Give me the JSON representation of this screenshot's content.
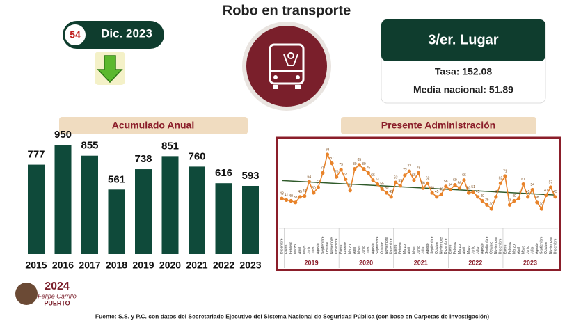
{
  "header": {
    "title": "Robo en transporte",
    "badge_number": "54",
    "period": "Dic. 2023"
  },
  "rank_card": {
    "rank": "3/er. Lugar",
    "rate": "Tasa: 152.08",
    "national_mean": "Media nacional: 51.89"
  },
  "logo": {
    "year": "2024",
    "line1": "Felipe Carrillo",
    "line2": "PUERTO"
  },
  "footer": "Fuente: S.S. y P.C. con datos del Secretariado Ejecutivo del Sistema Nacional de Seguridad Pública (con base en Carpetas de Investigación)",
  "chart_data": [
    {
      "type": "bar",
      "title": "Acumulado Anual",
      "color": "#0f4a3a",
      "categories": [
        "2015",
        "2016",
        "2017",
        "2018",
        "2019",
        "2020",
        "2021",
        "2022",
        "2023"
      ],
      "values": [
        777,
        950,
        855,
        561,
        738,
        851,
        760,
        616,
        593
      ]
    },
    {
      "type": "line",
      "title": "Presente Administración",
      "color": "#e8832a",
      "trend_color": "#2f5a2a",
      "categories": [
        "Diciembre",
        "Enero",
        "Febrero",
        "Marzo",
        "Abril",
        "Mayo",
        "Junio",
        "Julio",
        "Agosto",
        "Septiembre",
        "Octubre",
        "Noviembre",
        "Diciembre",
        "Enero",
        "Febrero",
        "Marzo",
        "Abril",
        "Mayo",
        "Junio",
        "Julio",
        "Agosto",
        "Septiembre",
        "Octubre",
        "Noviembre",
        "Diciembre",
        "Enero",
        "Febrero",
        "Marzo",
        "Abril",
        "Mayo",
        "Junio",
        "Julio",
        "Agosto",
        "Septiembre",
        "Octubre",
        "Noviembre",
        "Diciembre",
        "Enero",
        "Febrero",
        "Marzo",
        "Abril",
        "Mayo",
        "Junio",
        "Julio",
        "Agosto",
        "Septiembre",
        "Octubre",
        "Noviembre",
        "Diciembre",
        "Enero",
        "Febrero",
        "Marzo",
        "Abril",
        "Mayo",
        "Junio",
        "Julio",
        "Agosto",
        "Septiembre",
        "Octubre",
        "Noviembre",
        "Diciembre"
      ],
      "year_groups": [
        "2019",
        "2020",
        "2021",
        "2022",
        "2023"
      ],
      "values": [
        43,
        41,
        40,
        38,
        45,
        46,
        64,
        50,
        57,
        75,
        98,
        87,
        70,
        79,
        67,
        53,
        80,
        85,
        80,
        75,
        66,
        61,
        55,
        50,
        45,
        63,
        59,
        72,
        77,
        66,
        75,
        56,
        62,
        50,
        45,
        48,
        58,
        54,
        60,
        56,
        66,
        50,
        51,
        45,
        40,
        35,
        30,
        45,
        62,
        71,
        35,
        40,
        43,
        61,
        45,
        54,
        38,
        30,
        47,
        57,
        45
      ]
    }
  ]
}
